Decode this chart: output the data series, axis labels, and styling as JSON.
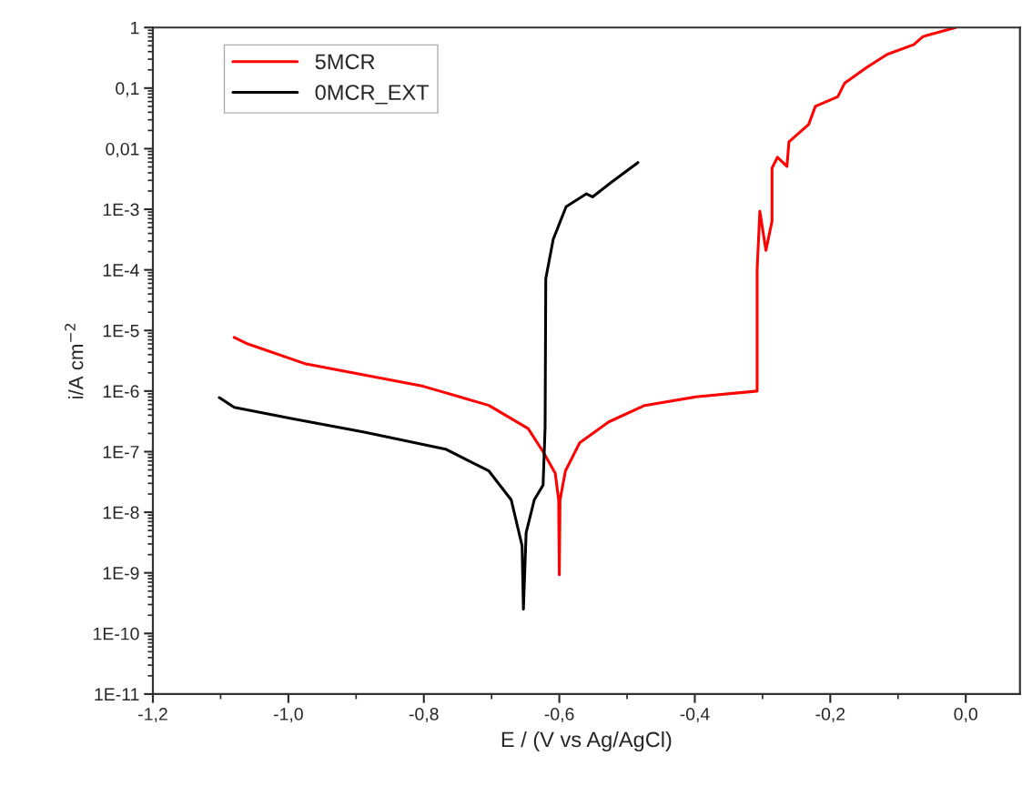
{
  "chart_data": {
    "type": "line",
    "xlabel": "E / (V vs Ag/AgCl)",
    "ylabel": "i/A cm$^{−2}$",
    "log": "y",
    "grid": false,
    "legend": "top left",
    "line_style": "solid",
    "marker": "none",
    "xlim": [
      -1.2,
      0.08
    ],
    "xticks": [
      {
        "value": -1.2,
        "label": "-1,2"
      },
      {
        "value": -1.0,
        "label": "-1,0"
      },
      {
        "value": -0.8,
        "label": "-0,8"
      },
      {
        "value": -0.6,
        "label": "-0,6"
      },
      {
        "value": -0.4,
        "label": "-0,4"
      },
      {
        "value": -0.2,
        "label": "-0,2"
      },
      {
        "value": 0.0,
        "label": "0,0"
      }
    ],
    "ylim": [
      1e-11,
      1
    ],
    "yticks": [
      {
        "value": 1e-11,
        "label": "1E-11"
      },
      {
        "value": 1e-10,
        "label": "1E-10"
      },
      {
        "value": 1e-09,
        "label": "1E-9"
      },
      {
        "value": 1e-08,
        "label": "1E-8"
      },
      {
        "value": 1e-07,
        "label": "1E-7"
      },
      {
        "value": 1e-06,
        "label": "1E-6"
      },
      {
        "value": 1e-05,
        "label": "1E-5"
      },
      {
        "value": 0.0001,
        "label": "1E-4"
      },
      {
        "value": 0.001,
        "label": "1E-3"
      },
      {
        "value": 0.01,
        "label": "0,01"
      },
      {
        "value": 0.1,
        "label": "0,1"
      },
      {
        "value": 1,
        "label": "1"
      }
    ],
    "series": [
      {
        "name": "5MCR",
        "color": "#ff0000",
        "x": [
          -1.08,
          -1.06,
          -0.974,
          -0.801,
          -0.704,
          -0.646,
          -0.624,
          -0.606,
          -0.601,
          -0.6,
          -0.599,
          -0.591,
          -0.57,
          -0.527,
          -0.474,
          -0.399,
          -0.308,
          -0.308,
          -0.304,
          -0.295,
          -0.286,
          -0.286,
          -0.278,
          -0.264,
          -0.261,
          -0.232,
          -0.222,
          -0.189,
          -0.179,
          -0.146,
          -0.116,
          -0.077,
          -0.063,
          -0.015
        ],
        "values": [
          7.7e-06,
          6e-06,
          2.8e-06,
          1.2e-06,
          5.8e-07,
          2.4e-07,
          1e-07,
          4.4e-08,
          1.6e-08,
          9.3e-10,
          1.6e-08,
          4.8e-08,
          1.4e-07,
          3.1e-07,
          5.8e-07,
          8e-07,
          1e-06,
          0.0001,
          0.00093,
          0.00021,
          0.00064,
          0.0048,
          0.0072,
          0.0051,
          0.013,
          0.025,
          0.05,
          0.072,
          0.12,
          0.22,
          0.36,
          0.52,
          0.71,
          1.0
        ]
      },
      {
        "name": "0MCR_EXT",
        "color": "#000000",
        "x": [
          -1.102,
          -1.08,
          -0.994,
          -0.888,
          -0.768,
          -0.704,
          -0.671,
          -0.655,
          -0.653,
          -0.649,
          -0.637,
          -0.624,
          -0.621,
          -0.62,
          -0.609,
          -0.59,
          -0.56,
          -0.551,
          -0.523,
          -0.484
        ],
        "values": [
          7.8e-07,
          5.4e-07,
          3.5e-07,
          2.1e-07,
          1.1e-07,
          4.8e-08,
          1.6e-08,
          2.8e-09,
          2.5e-10,
          4.6e-09,
          1.6e-08,
          2.8e-08,
          2.5e-07,
          7.2e-05,
          0.00032,
          0.0011,
          0.0018,
          0.0016,
          0.0028,
          0.0059
        ]
      }
    ]
  }
}
